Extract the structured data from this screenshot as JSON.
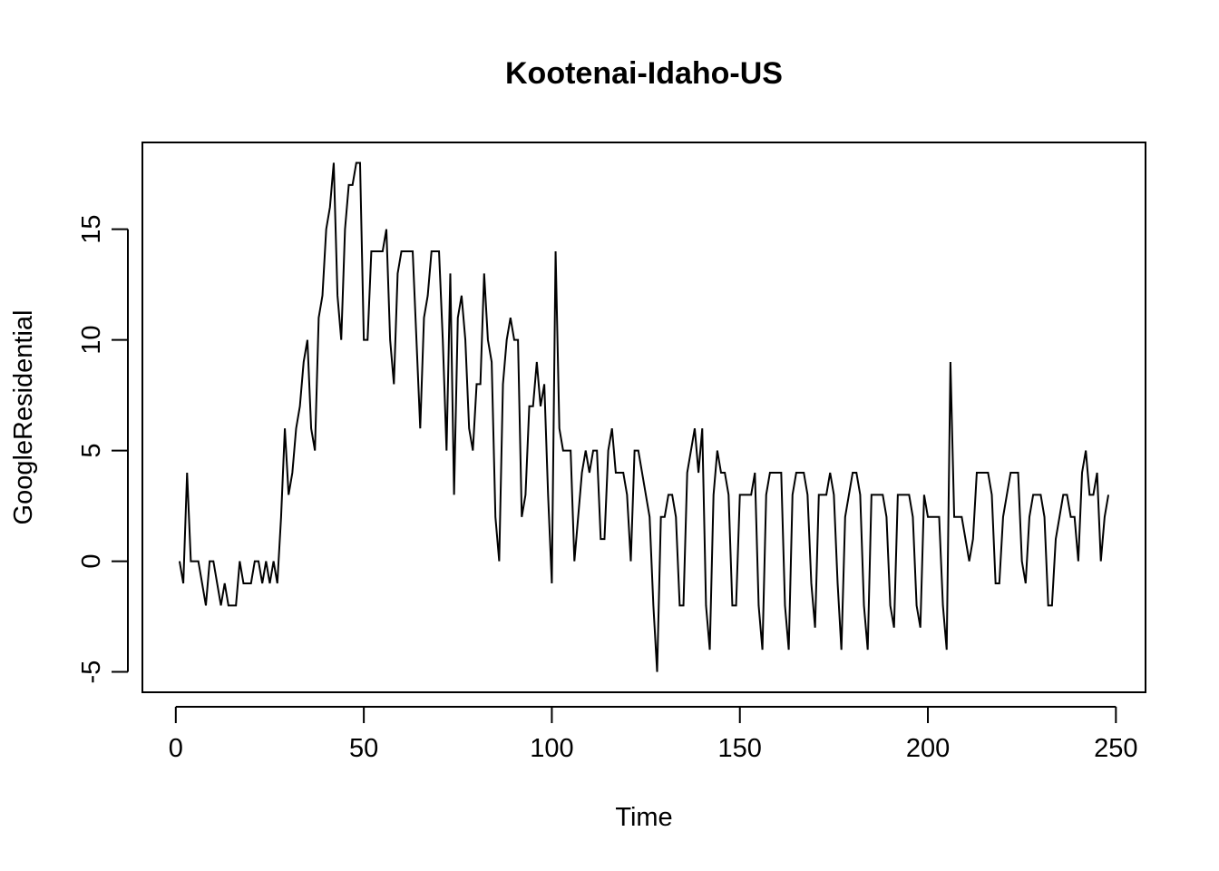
{
  "chart_data": {
    "type": "line",
    "title": "Kootenai-Idaho-US",
    "xlabel": "Time",
    "ylabel": "GoogleResidential",
    "xlim": [
      -8.88,
      257.88
    ],
    "ylim": [
      -5.92,
      18.92
    ],
    "x_ticks": [
      0,
      50,
      100,
      150,
      200,
      250
    ],
    "y_ticks": [
      -5,
      0,
      5,
      10,
      15
    ],
    "grid": false,
    "legend": "none",
    "color": "#000000",
    "series": [
      {
        "x_start": 1,
        "values": [
          0,
          -1,
          4,
          0,
          0,
          0,
          -1,
          -2,
          0,
          0,
          -1,
          -2,
          -1,
          -2,
          -2,
          -2,
          0,
          -1,
          -1,
          -1,
          0,
          0,
          -1,
          0,
          -1,
          0,
          -1,
          2,
          6,
          3,
          4,
          6,
          7,
          9,
          10,
          6,
          5,
          11,
          12,
          15,
          16,
          18,
          12,
          10,
          15,
          17,
          17,
          18,
          18,
          10,
          10,
          14,
          14,
          14,
          14,
          15,
          10,
          8,
          13,
          14,
          14,
          14,
          14,
          10,
          6,
          11,
          12,
          14,
          14,
          14,
          10,
          5,
          13,
          3,
          11,
          12,
          10,
          6,
          5,
          8,
          8,
          13,
          10,
          9,
          2,
          0,
          8,
          10,
          11,
          10,
          10,
          2,
          3,
          7,
          7,
          9,
          7,
          8,
          3,
          -1,
          14,
          6,
          5,
          5,
          5,
          0,
          2,
          4,
          5,
          4,
          5,
          5,
          1,
          1,
          5,
          6,
          4,
          4,
          4,
          3,
          0,
          5,
          5,
          4,
          3,
          2,
          -2,
          -5,
          2,
          2,
          3,
          3,
          2,
          -2,
          -2,
          4,
          5,
          6,
          4,
          6,
          -2,
          -4,
          3,
          5,
          4,
          4,
          3,
          -2,
          -2,
          3,
          3,
          3,
          3,
          4,
          -2,
          -4,
          3,
          4,
          4,
          4,
          4,
          -2,
          -4,
          3,
          4,
          4,
          4,
          3,
          -1,
          -3,
          3,
          3,
          3,
          4,
          3,
          -1,
          -4,
          2,
          3,
          4,
          4,
          3,
          -2,
          -4,
          3,
          3,
          3,
          3,
          2,
          -2,
          -3,
          3,
          3,
          3,
          3,
          2,
          -2,
          -3,
          3,
          2,
          2,
          2,
          2,
          -2,
          -4,
          9,
          2,
          2,
          2,
          1,
          0,
          1,
          4,
          4,
          4,
          4,
          3,
          -1,
          -1,
          2,
          3,
          4,
          4,
          4,
          0,
          -1,
          2,
          3,
          3,
          3,
          2,
          -2,
          -2,
          1,
          2,
          3,
          3,
          2,
          2,
          0,
          4,
          5,
          3,
          3,
          4,
          0,
          2,
          3
        ]
      }
    ]
  }
}
